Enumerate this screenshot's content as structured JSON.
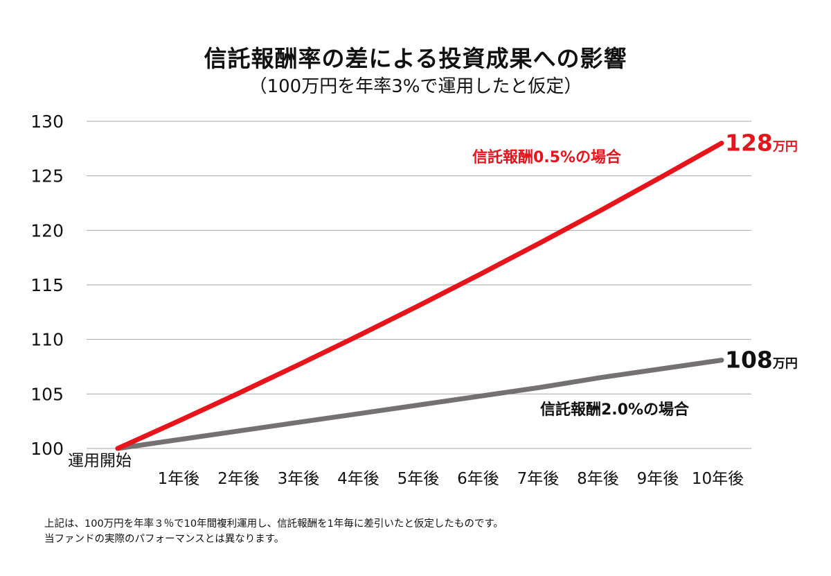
{
  "title": "信託報酬率の差による投資成果への影響",
  "subtitle": "（100万円を年率3%で運用したと仮定）",
  "chart_data": {
    "type": "line",
    "categories": [
      "運用開始",
      "1年後",
      "2年後",
      "3年後",
      "4年後",
      "5年後",
      "6年後",
      "7年後",
      "8年後",
      "9年後",
      "10年後"
    ],
    "ylim": [
      100,
      130
    ],
    "yticks": [
      100,
      105,
      110,
      115,
      120,
      125,
      130
    ],
    "grid": true,
    "series": [
      {
        "name": "信託報酬0.5%の場合",
        "color": "#e8141b",
        "values": [
          100,
          102.5,
          105.06,
          107.69,
          110.38,
          113.14,
          115.97,
          118.87,
          121.84,
          124.89,
          128.0
        ],
        "end_label_value": "128",
        "end_label_unit": "万円"
      },
      {
        "name": "信託報酬2.0%の場合",
        "color": "#767171",
        "values": [
          100,
          100.8,
          101.6,
          102.4,
          103.2,
          104.0,
          104.8,
          105.6,
          106.5,
          107.3,
          108.1
        ],
        "end_label_value": "108",
        "end_label_unit": "万円"
      }
    ]
  },
  "note": {
    "line1": "上記は、100万円を年率３％で10年間複利運用し、信託報酬を1年毎に差引いたと仮定したものです。",
    "line2": "当ファンドの実際のパフォーマンスとは異なります。"
  }
}
